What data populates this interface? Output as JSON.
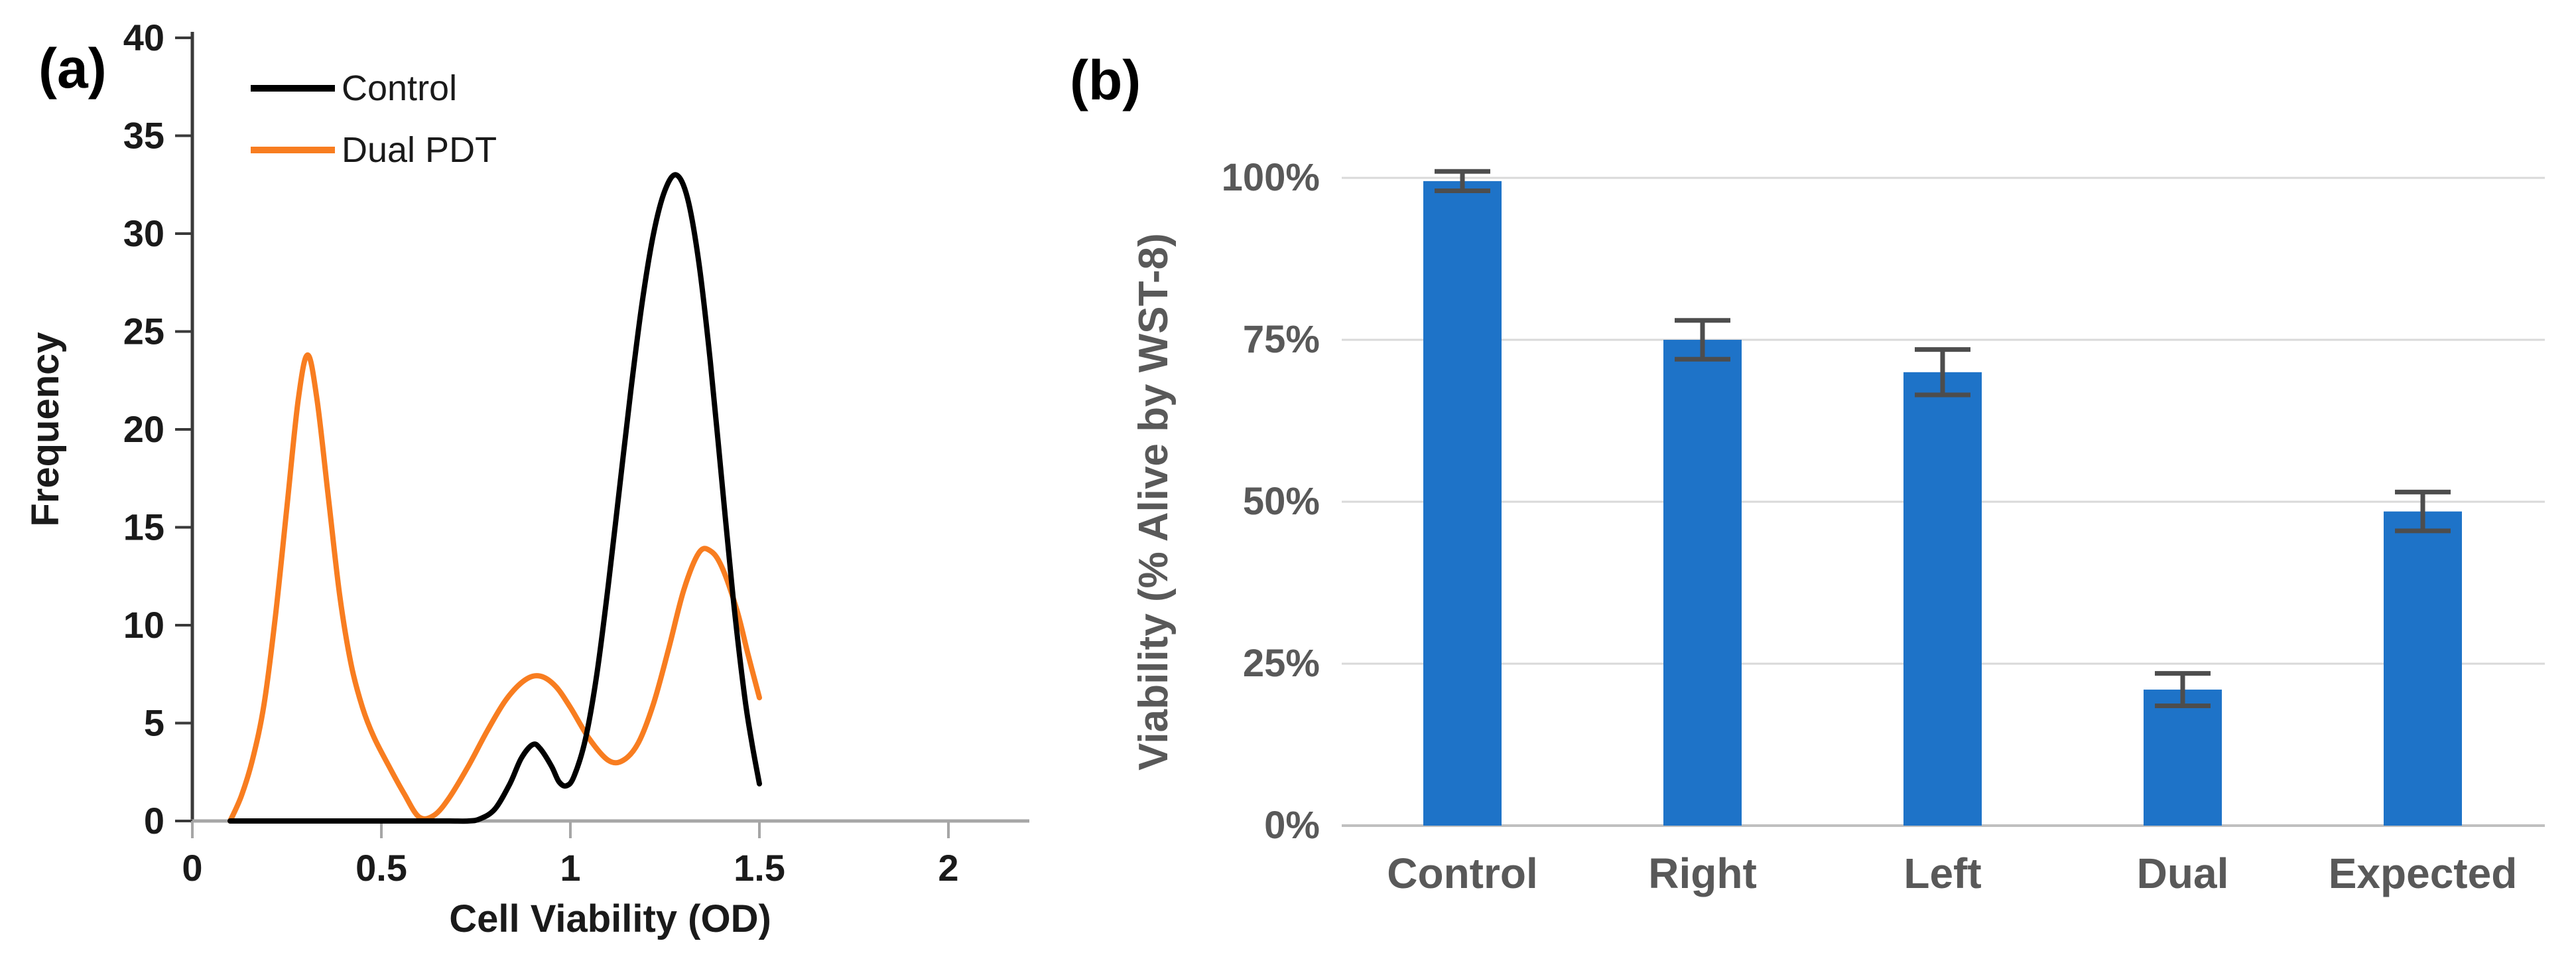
{
  "figure": {
    "panels": [
      {
        "label": "(a)"
      },
      {
        "label": "(b)"
      }
    ]
  },
  "chart_data": [
    {
      "type": "line",
      "panel": "a",
      "title": "",
      "xlabel": "Cell Viability (OD)",
      "ylabel": "Frequency",
      "xlim": [
        0,
        2
      ],
      "ylim": [
        0,
        40
      ],
      "x_ticks": [
        0,
        0.5,
        1,
        1.5,
        2
      ],
      "x_tick_labels": [
        "0",
        "0.5",
        "1",
        "1.5",
        "2"
      ],
      "y_ticks": [
        0,
        5,
        10,
        15,
        20,
        25,
        30,
        35,
        40
      ],
      "grid": false,
      "legend_position": "top-left-inside",
      "axis_colors": {
        "y_axis": "#3a3a3a",
        "x_axis": "#a6a6a6"
      },
      "series": [
        {
          "name": "Control",
          "color": "#000000",
          "points": [
            [
              0.1,
              0
            ],
            [
              0.2,
              0
            ],
            [
              0.3,
              0
            ],
            [
              0.4,
              0
            ],
            [
              0.5,
              0
            ],
            [
              0.6,
              0
            ],
            [
              0.68,
              0
            ],
            [
              0.73,
              0
            ],
            [
              0.76,
              0.1
            ],
            [
              0.8,
              0.6
            ],
            [
              0.84,
              1.9
            ],
            [
              0.87,
              3.2
            ],
            [
              0.9,
              3.9
            ],
            [
              0.92,
              3.7
            ],
            [
              0.95,
              2.8
            ],
            [
              0.97,
              2.0
            ],
            [
              0.99,
              1.8
            ],
            [
              1.01,
              2.3
            ],
            [
              1.04,
              4.2
            ],
            [
              1.07,
              7.5
            ],
            [
              1.1,
              12
            ],
            [
              1.13,
              17
            ],
            [
              1.16,
              22
            ],
            [
              1.19,
              26.5
            ],
            [
              1.22,
              30
            ],
            [
              1.25,
              32.2
            ],
            [
              1.28,
              33
            ],
            [
              1.31,
              31.8
            ],
            [
              1.34,
              28.5
            ],
            [
              1.37,
              23.5
            ],
            [
              1.4,
              17.5
            ],
            [
              1.43,
              11.5
            ],
            [
              1.46,
              6.5
            ],
            [
              1.48,
              4
            ],
            [
              1.5,
              1.9
            ]
          ]
        },
        {
          "name": "Dual PDT",
          "color": "#F87D20",
          "points": [
            [
              0.1,
              0
            ],
            [
              0.13,
              1.3
            ],
            [
              0.16,
              3.2
            ],
            [
              0.19,
              6
            ],
            [
              0.22,
              10.5
            ],
            [
              0.25,
              16
            ],
            [
              0.28,
              21.5
            ],
            [
              0.305,
              23.8
            ],
            [
              0.33,
              21.5
            ],
            [
              0.36,
              16.5
            ],
            [
              0.39,
              11.5
            ],
            [
              0.42,
              8
            ],
            [
              0.45,
              5.8
            ],
            [
              0.48,
              4.3
            ],
            [
              0.52,
              2.8
            ],
            [
              0.56,
              1.4
            ],
            [
              0.6,
              0.2
            ],
            [
              0.64,
              0.3
            ],
            [
              0.68,
              1.2
            ],
            [
              0.73,
              2.8
            ],
            [
              0.78,
              4.6
            ],
            [
              0.83,
              6.2
            ],
            [
              0.88,
              7.2
            ],
            [
              0.92,
              7.4
            ],
            [
              0.96,
              6.9
            ],
            [
              1.0,
              5.8
            ],
            [
              1.05,
              4.2
            ],
            [
              1.1,
              3.1
            ],
            [
              1.14,
              3.1
            ],
            [
              1.18,
              4
            ],
            [
              1.22,
              6
            ],
            [
              1.26,
              8.8
            ],
            [
              1.3,
              11.8
            ],
            [
              1.34,
              13.7
            ],
            [
              1.37,
              13.8
            ],
            [
              1.4,
              13
            ],
            [
              1.44,
              10.8
            ],
            [
              1.47,
              8.5
            ],
            [
              1.5,
              6.3
            ]
          ]
        }
      ]
    },
    {
      "type": "bar",
      "panel": "b",
      "title": "",
      "xlabel": "",
      "ylabel": "Viability (% Alive by WST-8)",
      "categories": [
        "Control",
        "Right",
        "Left",
        "Dual",
        "Expected"
      ],
      "values": [
        99.5,
        75,
        70,
        21,
        48.5
      ],
      "errors": [
        1.5,
        3,
        3.5,
        2.5,
        3
      ],
      "value_unit": "%",
      "ylim": [
        0,
        112
      ],
      "y_ticks": [
        0,
        25,
        50,
        75,
        100
      ],
      "y_tick_labels": [
        "0%",
        "25%",
        "50%",
        "75%",
        "100%"
      ],
      "grid": true,
      "legend_position": "none",
      "bar_color": "#1E73C8",
      "error_color": "#4D4D4D",
      "gridline_color": "#D9D9D9",
      "baseline_color": "#BFBFBF",
      "label_color": "#595959"
    }
  ]
}
